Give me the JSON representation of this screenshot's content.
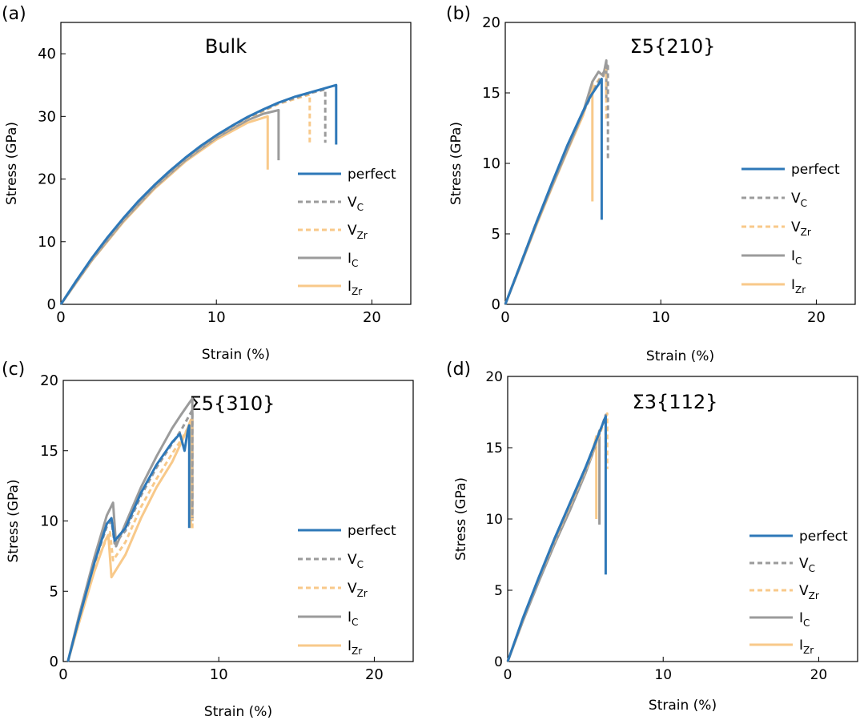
{
  "colors": {
    "perfect": "#2e78b8",
    "VC": "#9b9b9b",
    "VZr": "#f8c98a",
    "IC": "#9b9b9b",
    "IZr": "#f8c98a"
  },
  "legend_labels": [
    {
      "main": "perfect",
      "sub": "",
      "dashed": false,
      "key": "perfect"
    },
    {
      "main": "V",
      "sub": "C",
      "dashed": true,
      "key": "VC"
    },
    {
      "main": "V",
      "sub": "Zr",
      "dashed": true,
      "key": "VZr"
    },
    {
      "main": "I",
      "sub": "C",
      "dashed": false,
      "key": "IC"
    },
    {
      "main": "I",
      "sub": "Zr",
      "dashed": false,
      "key": "IZr"
    }
  ],
  "chart_data": [
    {
      "panel": "(a)",
      "type": "line",
      "title": "Bulk",
      "xlabel": "Strain (%)",
      "ylabel": "Stress (GPa)",
      "xlim": [
        0,
        22.5
      ],
      "ylim": [
        0,
        45
      ],
      "xticks": [
        "0",
        "10",
        "20"
      ],
      "xtick_values": [
        0,
        10,
        20
      ],
      "yticks": [
        "0",
        "10",
        "20",
        "30",
        "40"
      ],
      "ytick_values": [
        0,
        10,
        20,
        30,
        40
      ],
      "legend_position": "center-right",
      "series": [
        {
          "name": "perfect",
          "key": "perfect",
          "dashed": false,
          "x": [
            0,
            1,
            2,
            3,
            4,
            5,
            6,
            7,
            8,
            9,
            10,
            11,
            12,
            13,
            14,
            15,
            16,
            17,
            17.7,
            17.7
          ],
          "y": [
            0,
            3.8,
            7.4,
            10.7,
            13.7,
            16.5,
            19.0,
            21.3,
            23.4,
            25.3,
            27.0,
            28.5,
            29.9,
            31.1,
            32.2,
            33.1,
            33.8,
            34.5,
            35.0,
            25.5
          ]
        },
        {
          "name": "VC",
          "key": "VC",
          "dashed": true,
          "x": [
            0,
            2,
            4,
            6,
            8,
            10,
            12,
            14,
            16,
            17.0,
            17.0
          ],
          "y": [
            0,
            7.3,
            13.6,
            18.9,
            23.3,
            26.9,
            29.8,
            32.1,
            33.7,
            34.3,
            25.8
          ]
        },
        {
          "name": "VZr",
          "key": "VZr",
          "dashed": true,
          "x": [
            0,
            2,
            4,
            6,
            8,
            10,
            12,
            14,
            16.0,
            16.0
          ],
          "y": [
            0,
            7.2,
            13.5,
            18.8,
            23.2,
            26.8,
            29.7,
            32.0,
            33.5,
            25.8
          ]
        },
        {
          "name": "IC",
          "key": "IC",
          "dashed": false,
          "x": [
            0,
            2,
            4,
            6,
            8,
            10,
            12,
            13,
            14.0,
            14.0
          ],
          "y": [
            0,
            7.1,
            13.3,
            18.6,
            23.0,
            26.6,
            29.4,
            30.4,
            31.0,
            23.0
          ]
        },
        {
          "name": "IZr",
          "key": "IZr",
          "dashed": false,
          "x": [
            0,
            2,
            4,
            6,
            8,
            10,
            12,
            13.3,
            13.3
          ],
          "y": [
            0,
            7.0,
            13.1,
            18.4,
            22.8,
            26.3,
            29.0,
            30.0,
            21.5
          ]
        }
      ]
    },
    {
      "panel": "(b)",
      "type": "line",
      "title": "Σ5{210}",
      "xlabel": "Strain (%)",
      "ylabel": "Stress (GPa)",
      "xlim": [
        0,
        22.5
      ],
      "ylim": [
        0,
        20
      ],
      "xticks": [
        "0",
        "10",
        "20"
      ],
      "xtick_values": [
        0,
        10,
        20
      ],
      "yticks": [
        "0",
        "5",
        "10",
        "15",
        "20"
      ],
      "ytick_values": [
        0,
        5,
        10,
        15,
        20
      ],
      "legend_position": "center-right",
      "series": [
        {
          "name": "perfect",
          "key": "perfect",
          "dashed": false,
          "x": [
            0,
            1,
            2,
            3,
            4,
            5,
            5.5,
            6.0,
            6.2,
            6.2
          ],
          "y": [
            0,
            2.9,
            5.8,
            8.6,
            11.3,
            13.7,
            14.8,
            15.6,
            16.0,
            6.0
          ]
        },
        {
          "name": "VC",
          "key": "VC",
          "dashed": true,
          "x": [
            0,
            1,
            2,
            3,
            4,
            5,
            5.8,
            6.4,
            6.6,
            6.6
          ],
          "y": [
            0,
            2.9,
            5.8,
            8.5,
            11.2,
            13.6,
            15.4,
            16.6,
            17.1,
            10.2
          ]
        },
        {
          "name": "VZr",
          "key": "VZr",
          "dashed": true,
          "x": [
            0,
            1,
            2,
            3,
            4,
            5,
            5.8,
            6.3,
            6.5,
            6.5
          ],
          "y": [
            0,
            2.9,
            5.8,
            8.5,
            11.2,
            13.6,
            15.6,
            16.4,
            16.8,
            13.0
          ]
        },
        {
          "name": "IC",
          "key": "IC",
          "dashed": false,
          "x": [
            0,
            1,
            2,
            3,
            4,
            5,
            5.6,
            6.0,
            6.3,
            6.5,
            6.5
          ],
          "y": [
            0,
            2.8,
            5.7,
            8.4,
            11.0,
            13.6,
            15.8,
            16.5,
            16.2,
            17.3,
            14.5
          ]
        },
        {
          "name": "IZr",
          "key": "IZr",
          "dashed": false,
          "x": [
            0,
            1,
            2,
            3,
            4,
            5,
            5.5,
            5.6,
            5.6
          ],
          "y": [
            0,
            2.8,
            5.6,
            8.3,
            10.9,
            13.4,
            15.2,
            15.8,
            7.3
          ]
        }
      ]
    },
    {
      "panel": "(c)",
      "type": "line",
      "title": "Σ5{310}",
      "xlabel": "Strain (%)",
      "ylabel": "Stress (GPa)",
      "xlim": [
        0,
        22.5
      ],
      "ylim": [
        0,
        20
      ],
      "xticks": [
        "0",
        "10",
        "20"
      ],
      "xtick_values": [
        0,
        10,
        20
      ],
      "yticks": [
        "0",
        "5",
        "10",
        "15",
        "20"
      ],
      "ytick_values": [
        0,
        5,
        10,
        15,
        20
      ],
      "legend_position": "center-right",
      "series": [
        {
          "name": "perfect",
          "key": "perfect",
          "dashed": false,
          "x": [
            0.3,
            1,
            2,
            2.8,
            3.1,
            3.3,
            4,
            5,
            6,
            7,
            7.5,
            7.8,
            8.0,
            8.1,
            8.1
          ],
          "y": [
            0,
            3.0,
            7.0,
            9.8,
            10.2,
            8.6,
            9.5,
            12.0,
            14.0,
            15.6,
            16.2,
            15.0,
            16.4,
            16.8,
            9.5
          ]
        },
        {
          "name": "VC",
          "key": "VC",
          "dashed": true,
          "x": [
            0.3,
            1,
            2,
            2.8,
            3.1,
            3.3,
            4,
            5,
            6,
            7,
            7.6,
            8.1,
            8.3,
            8.3
          ],
          "y": [
            0,
            3.0,
            7.0,
            9.6,
            10.0,
            8.4,
            9.3,
            11.8,
            13.8,
            15.5,
            16.5,
            17.5,
            17.9,
            10.2
          ]
        },
        {
          "name": "VZr",
          "key": "VZr",
          "dashed": true,
          "x": [
            0.3,
            1,
            2,
            2.8,
            3.0,
            3.2,
            4,
            5,
            6,
            7,
            7.6,
            8.1,
            8.3,
            8.3
          ],
          "y": [
            0,
            2.8,
            6.6,
            8.8,
            9.2,
            7.2,
            8.5,
            11.0,
            13.0,
            14.8,
            15.8,
            16.8,
            17.3,
            9.3
          ]
        },
        {
          "name": "IC",
          "key": "IC",
          "dashed": false,
          "x": [
            0.3,
            1,
            2,
            2.8,
            3.2,
            3.4,
            4,
            5,
            6,
            7,
            7.6,
            8.1,
            8.3,
            8.3
          ],
          "y": [
            0,
            3.2,
            7.4,
            10.4,
            11.3,
            8.2,
            9.8,
            12.4,
            14.6,
            16.6,
            17.6,
            18.4,
            18.7,
            10.0
          ]
        },
        {
          "name": "IZr",
          "key": "IZr",
          "dashed": false,
          "x": [
            0.3,
            1,
            2,
            2.7,
            2.9,
            3.1,
            4,
            5,
            6,
            7,
            7.6,
            8.0,
            8.2,
            8.2
          ],
          "y": [
            0,
            2.7,
            6.4,
            8.6,
            9.0,
            6.0,
            7.6,
            10.2,
            12.4,
            14.2,
            15.6,
            16.6,
            17.2,
            9.5
          ]
        }
      ]
    },
    {
      "panel": "(d)",
      "type": "line",
      "title": "Σ3{112}",
      "xlabel": "Strain (%)",
      "ylabel": "Stress (GPa)",
      "xlim": [
        0,
        22.5
      ],
      "ylim": [
        0,
        20
      ],
      "xticks": [
        "0",
        "10",
        "20"
      ],
      "xtick_values": [
        0,
        10,
        20
      ],
      "yticks": [
        "0",
        "5",
        "10",
        "15",
        "20"
      ],
      "ytick_values": [
        0,
        5,
        10,
        15,
        20
      ],
      "legend_position": "center-right",
      "series": [
        {
          "name": "perfect",
          "key": "perfect",
          "dashed": false,
          "x": [
            0,
            1,
            2,
            3,
            4,
            5,
            5.8,
            6.3,
            6.3
          ],
          "y": [
            0,
            3.1,
            5.9,
            8.6,
            11.1,
            13.6,
            15.8,
            17.2,
            6.1
          ]
        },
        {
          "name": "VC",
          "key": "VC",
          "dashed": true,
          "x": [
            0,
            1,
            2,
            3,
            4,
            5,
            5.8,
            6.3,
            6.3
          ],
          "y": [
            0,
            3.0,
            5.8,
            8.5,
            11.0,
            13.5,
            15.7,
            17.3,
            14.0
          ]
        },
        {
          "name": "VZr",
          "key": "VZr",
          "dashed": true,
          "x": [
            0,
            1,
            2,
            3,
            4,
            5,
            5.8,
            6.4,
            6.4
          ],
          "y": [
            0,
            3.0,
            5.8,
            8.4,
            10.9,
            13.4,
            15.6,
            17.4,
            13.5
          ]
        },
        {
          "name": "IC",
          "key": "IC",
          "dashed": false,
          "x": [
            0,
            1,
            2,
            3,
            4,
            5,
            5.6,
            5.9,
            5.9
          ],
          "y": [
            0,
            2.9,
            5.6,
            8.2,
            10.6,
            13.2,
            15.0,
            16.2,
            9.6
          ]
        },
        {
          "name": "IZr",
          "key": "IZr",
          "dashed": false,
          "x": [
            0,
            1,
            2,
            3,
            4,
            5,
            5.5,
            5.7,
            5.7
          ],
          "y": [
            0,
            2.9,
            5.7,
            8.5,
            10.9,
            13.3,
            14.9,
            15.8,
            10.0
          ]
        }
      ]
    }
  ]
}
